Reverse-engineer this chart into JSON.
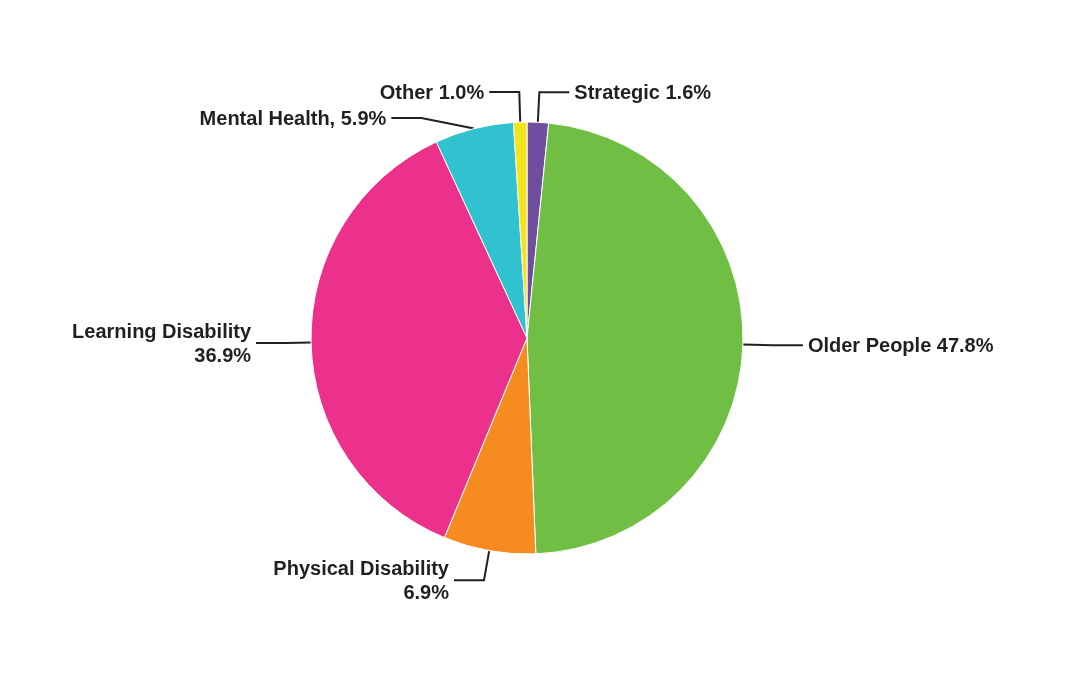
{
  "chart_data": {
    "type": "pie",
    "categories": [
      "Strategic",
      "Older People",
      "Physical Disability",
      "Learning Disability",
      "Mental Health",
      "Other"
    ],
    "values": [
      1.6,
      47.8,
      6.9,
      36.9,
      5.9,
      1.0
    ],
    "colors": [
      "#6f4ea0",
      "#70bf44",
      "#f68b1f",
      "#ec318c",
      "#31c2d0",
      "#f2e51b"
    ],
    "value_labels": [
      "1.6%",
      "47.8%",
      "6.9%",
      "36.9%",
      ", 5.9%",
      "1.0%"
    ],
    "legend": false
  }
}
